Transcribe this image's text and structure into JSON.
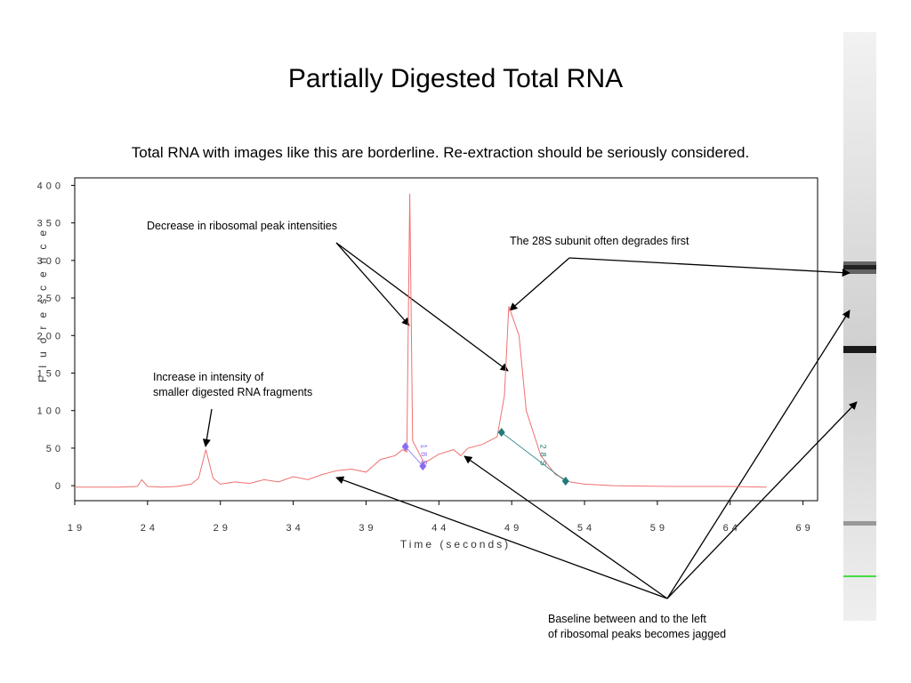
{
  "chart_data": {
    "type": "line",
    "title": "Partially Digested Total RNA",
    "subtitle": "Total RNA with images like this are borderline.  Re-extraction should be seriously considered.",
    "x_label": "Time (seconds)",
    "y_label": "Fluorescence",
    "xlim": [
      19,
      70
    ],
    "ylim": [
      -20,
      410
    ],
    "xticks": [
      19,
      24,
      29,
      34,
      39,
      44,
      49,
      54,
      59,
      64,
      69
    ],
    "yticks": [
      0,
      50,
      100,
      150,
      200,
      250,
      300,
      350,
      400
    ],
    "x": [
      19,
      22,
      23.3,
      23.6,
      24,
      25,
      26,
      27,
      27.5,
      28,
      28.5,
      29,
      30,
      31,
      32,
      33,
      34,
      35,
      36,
      37,
      38,
      39,
      40,
      41,
      41.5,
      41.8,
      42,
      42.2,
      43,
      44,
      45,
      45.5,
      46,
      47,
      48,
      48.5,
      48.8,
      49.5,
      50,
      51,
      52,
      53,
      54,
      56,
      60,
      64,
      66.5
    ],
    "series": [
      {
        "color": "#f07070",
        "values": [
          -2,
          -2,
          -1,
          8,
          -1,
          -2,
          -1,
          2,
          10,
          48,
          10,
          2,
          5,
          3,
          8,
          5,
          12,
          8,
          15,
          20,
          22,
          18,
          35,
          40,
          48,
          45,
          389,
          60,
          30,
          42,
          48,
          40,
          50,
          55,
          65,
          120,
          239,
          200,
          100,
          40,
          15,
          5,
          2,
          0,
          -1,
          -1,
          -2
        ]
      }
    ],
    "peak_markers": [
      {
        "label": "18S",
        "color": "#8a6cf0",
        "x": [
          41.7,
          42.9
        ],
        "y": [
          52,
          26
        ]
      },
      {
        "label": "28S",
        "color": "#1f7a7a",
        "x": [
          48.3,
          52.7
        ],
        "y": [
          71,
          6
        ]
      }
    ],
    "annotations": [
      {
        "lines": [
          "Decrease in  ribosomal peak intensities"
        ]
      },
      {
        "lines": [
          "The 28S subunit often degrades first"
        ]
      },
      {
        "lines": [
          "Increase in intensity of",
          "smaller digested RNA fragments"
        ]
      },
      {
        "lines": [
          "Baseline between and to the left",
          "of ribosomal peaks becomes jagged"
        ]
      }
    ]
  }
}
